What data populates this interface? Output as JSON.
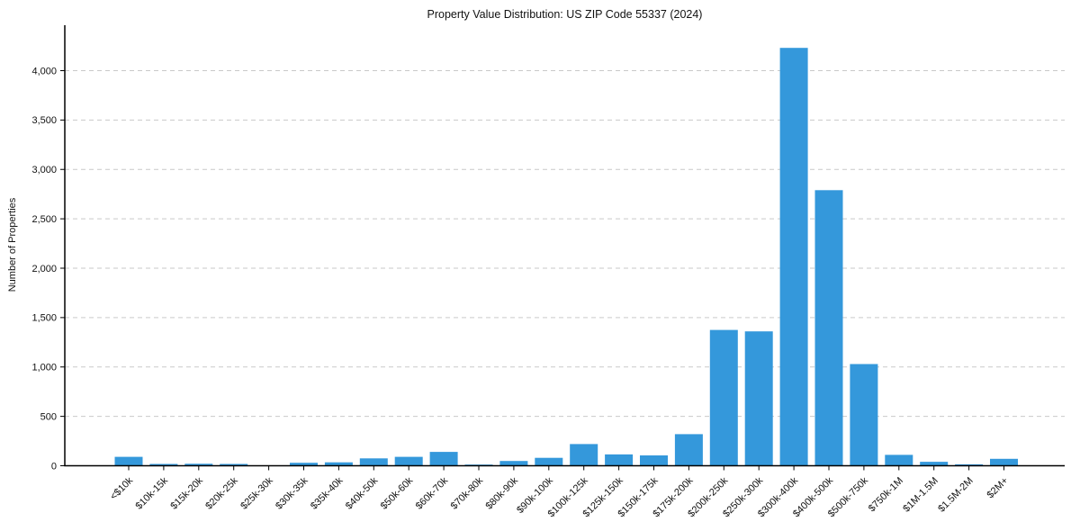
{
  "title": "Property Value Distribution: US ZIP Code 55337 (2024)",
  "chart_data": {
    "type": "bar",
    "title": "Property Value Distribution: US ZIP Code 55337 (2024)",
    "xlabel": "",
    "ylabel": "Number of Properties",
    "categories": [
      "<$10k",
      "$10k-15k",
      "$15k-20k",
      "$20k-25k",
      "$25k-30k",
      "$30k-35k",
      "$35k-40k",
      "$40k-50k",
      "$50k-60k",
      "$60k-70k",
      "$70k-80k",
      "$80k-90k",
      "$90k-100k",
      "$100k-125k",
      "$125k-150k",
      "$150k-175k",
      "$175k-200k",
      "$200k-250k",
      "$250k-300k",
      "$300k-400k",
      "$400k-500k",
      "$500k-750k",
      "$750k-1M",
      "$1M-1.5M",
      "$1.5M-2M",
      "$2M+"
    ],
    "values": [
      90,
      18,
      20,
      18,
      5,
      30,
      35,
      75,
      90,
      140,
      12,
      48,
      80,
      220,
      115,
      105,
      320,
      1375,
      1360,
      4230,
      2790,
      1030,
      110,
      40,
      15,
      70
    ],
    "ylim": [
      0,
      4460
    ],
    "yticks": [
      0,
      500,
      1000,
      1500,
      2000,
      2500,
      3000,
      3500,
      4000
    ],
    "ytick_labels": [
      "0",
      "500",
      "1,000",
      "1,500",
      "2,000",
      "2,500",
      "3,000",
      "3,500",
      "4,000"
    ],
    "grid": "horizontal-dashed",
    "legend": "none",
    "bar_color": "#3498db",
    "grid_color": "#c9c9c9",
    "axis_color": "#000000",
    "background": "#ffffff"
  }
}
